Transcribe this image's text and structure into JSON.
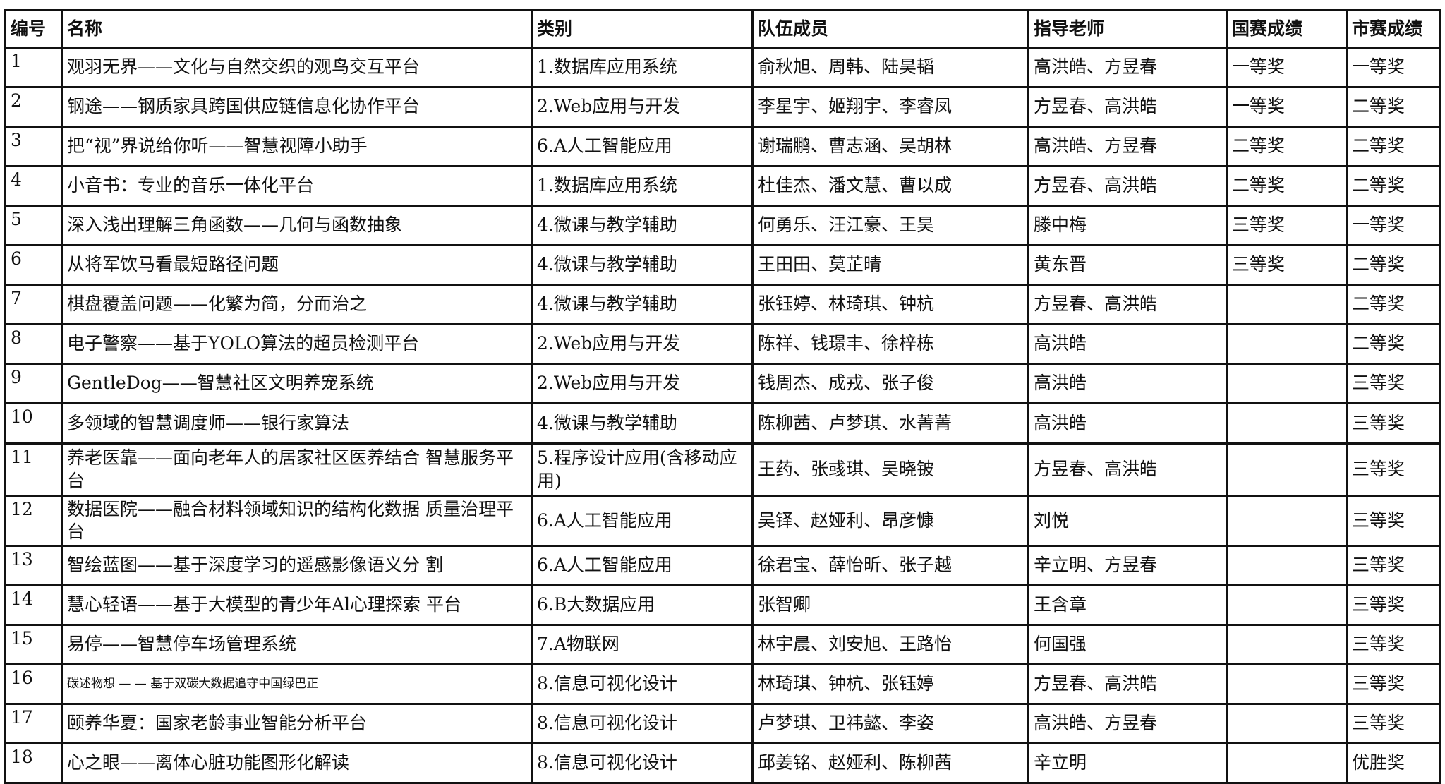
{
  "headers": [
    "编号",
    "名称",
    "类别",
    "队伍成员",
    "指导老师",
    "国赛成绩",
    "市赛成绩"
  ],
  "rows": [
    {
      "id": "1",
      "name": "观羽无界——文化与自然交织的观鸟交互平台",
      "category": "1.数据库应用系统",
      "members": "俞秋旭、周韩、陆昊韬",
      "advisors": "高洪皓、方昱春",
      "national": "一等奖",
      "city": "一等奖"
    },
    {
      "id": "2",
      "name": "钢途——钢质家具跨国供应链信息化协作平台",
      "category": "2.Web应用与开发",
      "members": "李星宇、姬翔宇、李睿凤",
      "advisors": "方昱春、高洪皓",
      "national": "一等奖",
      "city": "二等奖"
    },
    {
      "id": "3",
      "name": "把“视”界说给你听——智慧视障小助手",
      "category": "6.A人工智能应用",
      "members": "谢瑞鹏、曹志涵、吴胡林",
      "advisors": "高洪皓、方昱春",
      "national": "二等奖",
      "city": "二等奖"
    },
    {
      "id": "4",
      "name": "小音书：专业的音乐一体化平台",
      "category": "1.数据库应用系统",
      "members": "杜佳杰、潘文慧、曹以成",
      "advisors": "方昱春、高洪皓",
      "national": "二等奖",
      "city": "二等奖"
    },
    {
      "id": "5",
      "name": "深入浅出理解三角函数——几何与函数抽象",
      "category": "4.微课与教学辅助",
      "members": "何勇乐、汪江豪、王昊",
      "advisors": "滕中梅",
      "national": "三等奖",
      "city": "一等奖"
    },
    {
      "id": "6",
      "name": "从将军饮马看最短路径问题",
      "category": "4.微课与教学辅助",
      "members": "王田田、莫芷晴",
      "advisors": "黄东晋",
      "national": "三等奖",
      "city": "二等奖"
    },
    {
      "id": "7",
      "name": "棋盘覆盖问题——化繁为简，分而治之",
      "category": "4.微课与教学辅助",
      "members": "张钰婷、林琦琪、钟杭",
      "advisors": "方昱春、高洪皓",
      "national": "",
      "city": "二等奖"
    },
    {
      "id": "8",
      "name": "电子警察——基于YOLO算法的超员检测平台",
      "category": "2.Web应用与开发",
      "members": "陈祥、钱璟丰、徐梓栋",
      "advisors": "高洪皓",
      "national": "",
      "city": "二等奖"
    },
    {
      "id": "9",
      "name": "GentleDog——智慧社区文明养宠系统",
      "category": "2.Web应用与开发",
      "members": "钱周杰、成戎、张子俊",
      "advisors": "高洪皓",
      "national": "",
      "city": "三等奖"
    },
    {
      "id": "10",
      "name": "多领域的智慧调度师——银行家算法",
      "category": "4.微课与教学辅助",
      "members": "陈柳茜、卢梦琪、水菁菁",
      "advisors": "高洪皓",
      "national": "",
      "city": "三等奖"
    },
    {
      "id": "11",
      "name": "养老医靠——面向老年人的居家社区医养结合 智慧服务平台",
      "category": "5.程序设计应用(含移动应用)",
      "members": "王药、张彧琪、吴晓铍",
      "advisors": "方昱春、高洪皓",
      "national": "",
      "city": "三等奖"
    },
    {
      "id": "12",
      "name": "数据医院——融合材料领域知识的结构化数据 质量治理平台",
      "category": "6.A人工智能应用",
      "members": "吴铎、赵娅利、昂彦慷",
      "advisors": "刘悦",
      "national": "",
      "city": "三等奖"
    },
    {
      "id": "13",
      "name": "智绘蓝图——基于深度学习的遥感影像语义分 割",
      "category": "6.A人工智能应用",
      "members": "徐君宝、薛怡昕、张子越",
      "advisors": "辛立明、方昱春",
      "national": "",
      "city": "三等奖"
    },
    {
      "id": "14",
      "name": "慧心轻语——基于大模型的青少年Al心理探索 平台",
      "category": "6.B大数据应用",
      "members": "张智卿",
      "advisors": "王含章",
      "national": "",
      "city": "三等奖"
    },
    {
      "id": "15",
      "name": "易停——智慧停车场管理系统",
      "category": "7.A物联网",
      "members": "林宇晨、刘安旭、王路怡",
      "advisors": "何国强",
      "national": "",
      "city": "三等奖"
    },
    {
      "id": "16",
      "name": "碳述物想 — — 基于双碳大数据追守中国绿巴正",
      "category": "8.信息可视化设计",
      "members": "林琦琪、钟杭、张钰婷",
      "advisors": "方昱春、高洪皓",
      "national": "",
      "city": "三等奖"
    },
    {
      "id": "17",
      "name": "颐养华夏：国家老龄事业智能分析平台",
      "category": "8.信息可视化设计",
      "members": "卢梦琪、卫祎懿、李姿",
      "advisors": "高洪皓、方昱春",
      "national": "",
      "city": "三等奖"
    },
    {
      "id": "18",
      "name": "心之眼——离体心脏功能图形化解读",
      "category": "8.信息可视化设计",
      "members": "邱姜铭、赵娅利、陈柳茜",
      "advisors": "辛立明",
      "national": "",
      "city": "优胜奖"
    }
  ]
}
